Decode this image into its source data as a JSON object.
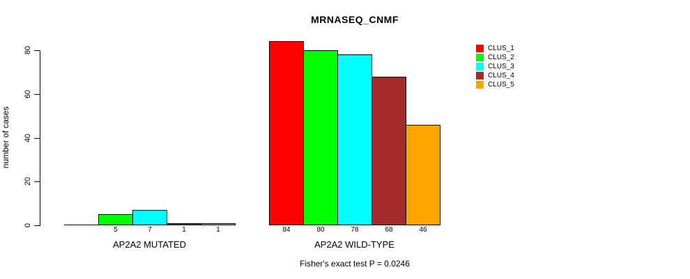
{
  "chart_data": {
    "type": "bar",
    "title": "MRNASEQ_CNMF",
    "ylabel": "number of cases",
    "xlabel": "",
    "categories": [
      "AP2A2 MUTATED",
      "AP2A2 WILD-TYPE"
    ],
    "series": [
      {
        "name": "CLUS_1",
        "color": "#FF0000",
        "values": [
          0,
          84
        ]
      },
      {
        "name": "CLUS_2",
        "color": "#00FF00",
        "values": [
          5,
          80
        ]
      },
      {
        "name": "CLUS_3",
        "color": "#00FFFF",
        "values": [
          7,
          78
        ]
      },
      {
        "name": "CLUS_4",
        "color": "#A52A2A",
        "values": [
          1,
          68
        ]
      },
      {
        "name": "CLUS_5",
        "color": "#FFA500",
        "values": [
          1,
          46
        ]
      }
    ],
    "yticks": [
      0,
      20,
      40,
      60,
      80
    ],
    "ylim": [
      0,
      84
    ],
    "grid": false,
    "legend_position": "top-right",
    "bar_value_labels_shown": true,
    "zero_value_labels_hidden": true,
    "annotation": "Fisher's exact test P = 0.0246"
  },
  "style": {
    "axis_color": "#000000",
    "text_color": "#000000",
    "background_color": "#ffffff",
    "bar_border_color": "#000000"
  }
}
